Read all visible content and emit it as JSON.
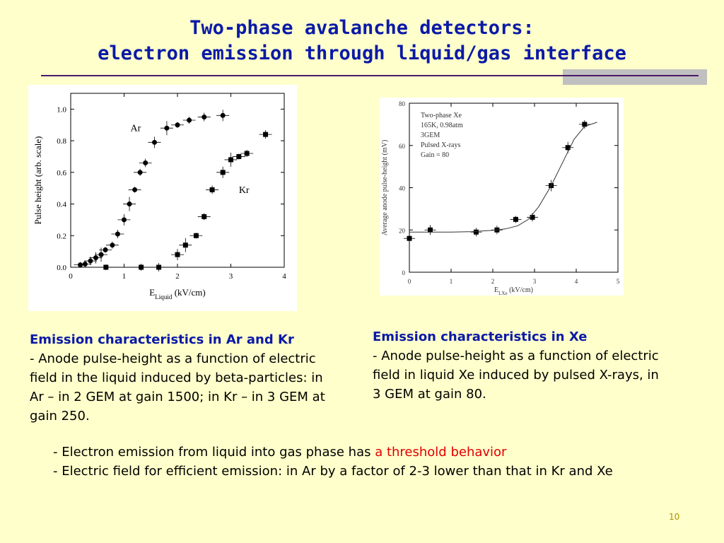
{
  "title": {
    "line1": "Two-phase avalanche detectors:",
    "line2": "electron emission through liquid/gas interface"
  },
  "figure_left": {
    "chart_data": {
      "type": "scatter",
      "xlabel_main": "E",
      "xlabel_sub": "Liquid",
      "xlabel_unit": "(kV/cm)",
      "ylabel": "Pulse height (arb. scale)",
      "xlim": [
        0,
        4
      ],
      "ylim": [
        0,
        1.1
      ],
      "xticks": [
        "0",
        "1",
        "2",
        "3",
        "4"
      ],
      "yticks": [
        "0.0",
        "0.2",
        "0.4",
        "0.6",
        "0.8",
        "1.0"
      ],
      "series": [
        {
          "name": "Ar",
          "marker": "circle",
          "x": [
            0.18,
            0.27,
            0.37,
            0.47,
            0.57,
            0.65,
            0.78,
            0.88,
            1.0,
            1.1,
            1.2,
            1.3,
            1.4,
            1.57,
            1.8,
            2.0,
            2.22,
            2.5,
            2.85
          ],
          "y": [
            0.015,
            0.02,
            0.04,
            0.06,
            0.08,
            0.11,
            0.14,
            0.21,
            0.3,
            0.4,
            0.49,
            0.6,
            0.66,
            0.79,
            0.88,
            0.9,
            0.93,
            0.95,
            0.96
          ]
        },
        {
          "name": "Kr",
          "marker": "square",
          "x": [
            0.66,
            1.32,
            1.65,
            2.0,
            2.15,
            2.35,
            2.5,
            2.65,
            2.85,
            3.0,
            3.15,
            3.3,
            3.65
          ],
          "y": [
            0.0,
            0.0,
            0.0,
            0.08,
            0.14,
            0.2,
            0.32,
            0.49,
            0.6,
            0.68,
            0.7,
            0.72,
            0.84
          ]
        }
      ]
    }
  },
  "figure_right": {
    "chart_data": {
      "type": "scatter",
      "xlabel_main": "E",
      "xlabel_sub": "LXe",
      "xlabel_unit": "(kV/cm)",
      "ylabel": "Average anode pulse-height (mV)",
      "xlim": [
        0,
        5
      ],
      "ylim": [
        0,
        80
      ],
      "xticks": [
        "0",
        "1",
        "2",
        "3",
        "4",
        "5"
      ],
      "yticks": [
        "0",
        "20",
        "40",
        "60",
        "80"
      ],
      "annotation": [
        "Two-phase Xe",
        "165K, 0.98atm",
        "3GEM",
        "Pulsed X-rays",
        "Gain = 80"
      ],
      "series": [
        {
          "name": "",
          "marker": "square",
          "x": [
            0.0,
            0.5,
            1.6,
            2.1,
            2.55,
            2.95,
            3.4,
            3.8,
            4.2
          ],
          "y": [
            16,
            20,
            19,
            20,
            25,
            26,
            41,
            59,
            70
          ]
        }
      ]
    }
  },
  "caption_left": {
    "heading": "Emission characteristics in Ar and Kr",
    "body": "- Anode pulse-height as a function of electric field in the liquid induced by beta-particles: in Ar – in 2 GEM at gain 1500; in Kr – in 3 GEM at gain 250."
  },
  "caption_right": {
    "heading": "Emission characteristics in Xe",
    "body": "- Anode pulse-height as a function of electric field in liquid Xe induced by pulsed X-rays, in 3 GEM at gain 80."
  },
  "bullets": {
    "b1_text": "- Electron emission from liquid into gas phase has ",
    "b1_highlight": "a threshold behavior",
    "b2_text": "- Electric field for efficient emission: in Ar by a factor of 2-3 lower than that in Kr and Xe"
  },
  "page_number": "10",
  "colors": {
    "background": "#ffffcc",
    "title": "#0a1aa6",
    "highlight": "#e00000"
  }
}
